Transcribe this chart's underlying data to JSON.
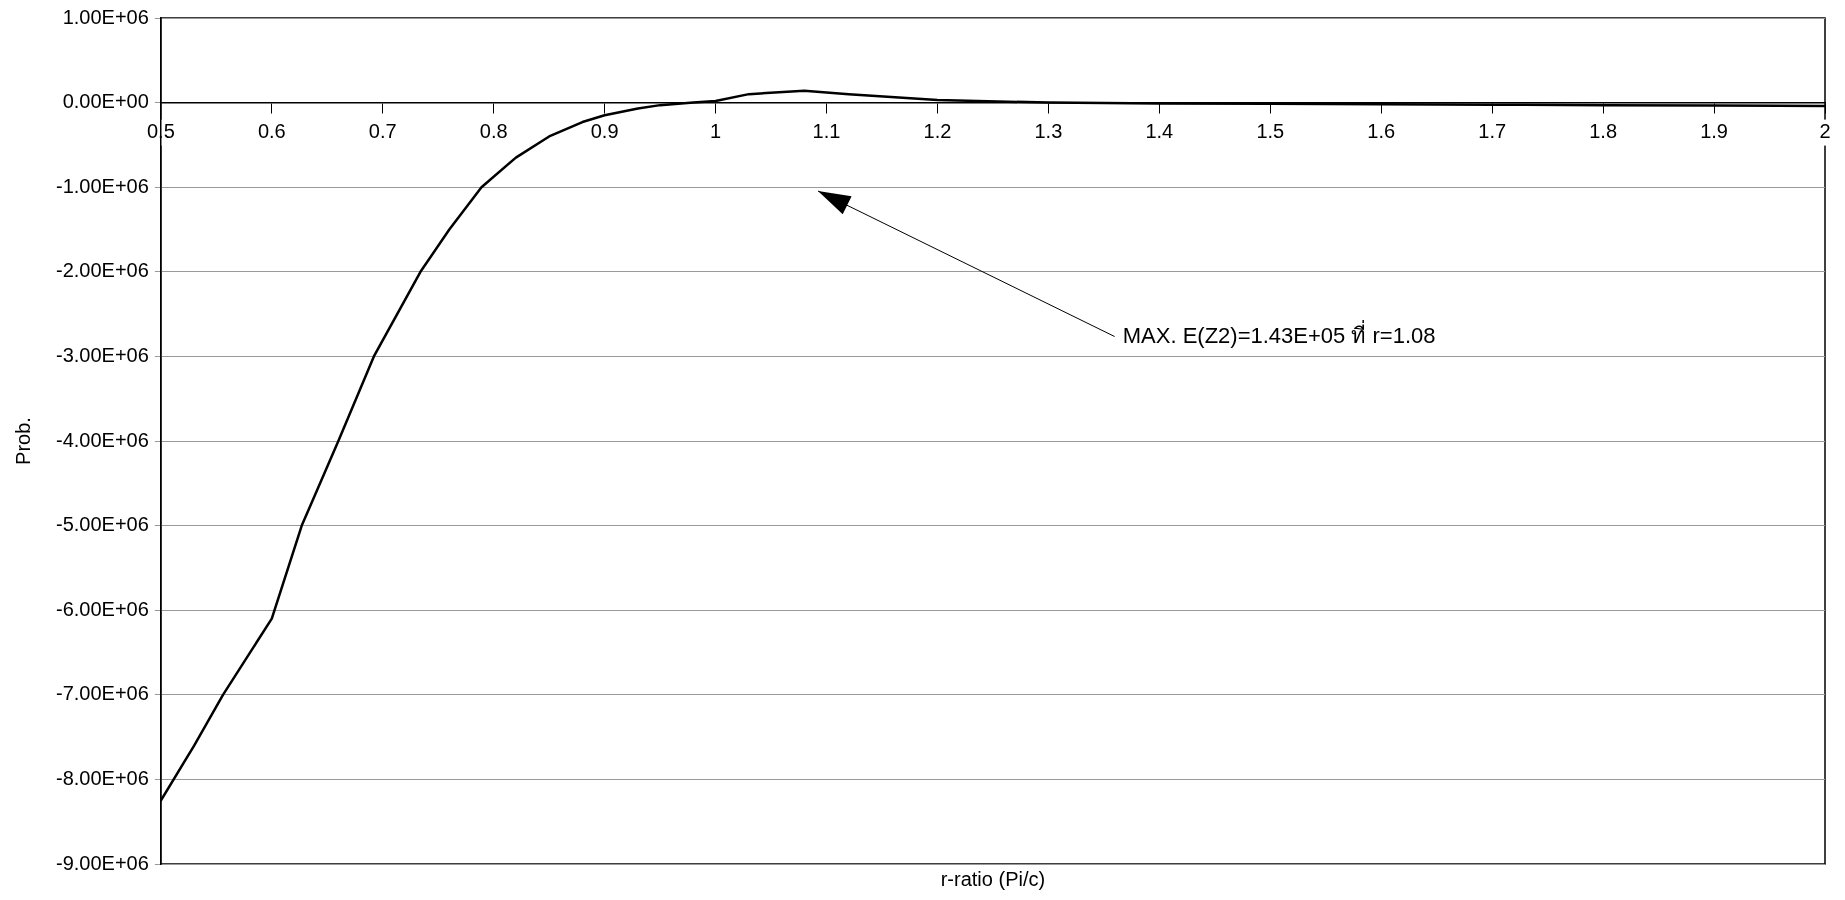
{
  "chart_data": {
    "type": "line",
    "xlabel": "r-ratio (Pi/c)",
    "ylabel": "Prob.",
    "x": [
      0.5,
      0.53,
      0.556,
      0.6,
      0.627,
      0.66,
      0.692,
      0.734,
      0.76,
      0.789,
      0.82,
      0.85,
      0.88,
      0.9,
      0.93,
      0.95,
      0.98,
      1.0,
      1.03,
      1.08,
      1.12,
      1.2,
      1.3,
      1.4,
      1.5,
      1.6,
      1.7,
      1.8,
      1.9,
      2.0
    ],
    "series": [
      {
        "color": "#000000",
        "values": [
          -8250000,
          -7600000,
          -7000000,
          -6100000,
          -5000000,
          -4000000,
          -3000000,
          -2000000,
          -1500000,
          -1000000,
          -650000,
          -400000,
          -230000,
          -150000,
          -70000,
          -30000,
          0,
          20000,
          100000,
          140000,
          100000,
          30000,
          0,
          -10000,
          -15000,
          -20000,
          -25000,
          -30000,
          -35000,
          -40000
        ]
      }
    ],
    "xlim": [
      0.5,
      2.0
    ],
    "xticks": [
      0.5,
      0.6,
      0.7,
      0.8,
      0.9,
      1,
      1.1,
      1.2,
      1.3,
      1.4,
      1.5,
      1.6,
      1.7,
      1.8,
      1.9,
      2
    ],
    "ylim": [
      -9000000,
      1000000
    ],
    "yticks": [
      {
        "value": -9000000,
        "label": "-9.00E+06"
      },
      {
        "value": -8000000,
        "label": "-8.00E+06"
      },
      {
        "value": -7000000,
        "label": "-7.00E+06"
      },
      {
        "value": -6000000,
        "label": "-6.00E+06"
      },
      {
        "value": -5000000,
        "label": "-5.00E+06"
      },
      {
        "value": -4000000,
        "label": "-4.00E+06"
      },
      {
        "value": -3000000,
        "label": "-3.00E+06"
      },
      {
        "value": -2000000,
        "label": "-2.00E+06"
      },
      {
        "value": -1000000,
        "label": "-1.00E+06"
      },
      {
        "value": 0,
        "label": "0.00E+00"
      },
      {
        "value": 1000000,
        "label": "1.00E+06"
      }
    ],
    "grid": "y",
    "marker": "none",
    "line_style": "solid",
    "legend": false,
    "annotations": [
      "MAX. E(Z2)=1.43E+05 ที่ r=1.08"
    ]
  }
}
